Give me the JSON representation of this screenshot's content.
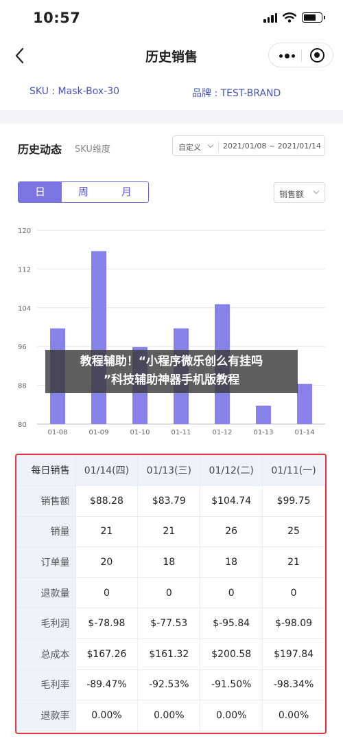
{
  "status_bar": {
    "time": "10:57"
  },
  "nav": {
    "title": "历史销售",
    "back_icon": "chevron-left-icon"
  },
  "info": {
    "sku": "SKU : Mask-Box-30",
    "brand": "品牌 : TEST-BRAND"
  },
  "section": {
    "title": "历史动态",
    "subtitle": "SKU维度",
    "date_mode": "自定义",
    "date_range": "2021/01/08 ~ 2021/01/14",
    "tabs": [
      "日",
      "周",
      "月"
    ],
    "active_tab": 0,
    "metric": "销售额"
  },
  "chart_data": {
    "type": "bar",
    "categories": [
      "01-08",
      "01-09",
      "01-10",
      "01-11",
      "01-12",
      "01-13",
      "01-14"
    ],
    "values": [
      99.75,
      115.7,
      95.9,
      99.75,
      104.74,
      83.79,
      88.28
    ],
    "ylim": [
      80,
      120
    ],
    "yticks": [
      80,
      88,
      96,
      104,
      112,
      120
    ],
    "bar_color": "#8782e8",
    "grid": true
  },
  "overlay_text": {
    "line1": "教程辅助！“小程序微乐创么有挂吗",
    "line2": "”科技辅助神器手机版教程"
  },
  "table": {
    "header": [
      "每日销售",
      "01/14(四)",
      "01/13(三)",
      "01/12(二)",
      "01/11(一)"
    ],
    "rows": [
      [
        "销售额",
        "$88.28",
        "$83.79",
        "$104.74",
        "$99.75"
      ],
      [
        "销量",
        "21",
        "21",
        "26",
        "25"
      ],
      [
        "订单量",
        "20",
        "18",
        "18",
        "21"
      ],
      [
        "退款量",
        "0",
        "0",
        "0",
        "0"
      ],
      [
        "毛利润",
        "$-78.98",
        "$-77.53",
        "$-95.84",
        "$-98.09"
      ],
      [
        "总成本",
        "$167.26",
        "$161.32",
        "$200.58",
        "$197.84"
      ],
      [
        "毛利率",
        "-89.47%",
        "-92.53%",
        "-91.50%",
        "-98.34%"
      ],
      [
        "退款率",
        "0.00%",
        "0.00%",
        "0.00%",
        "0.00%"
      ]
    ]
  }
}
